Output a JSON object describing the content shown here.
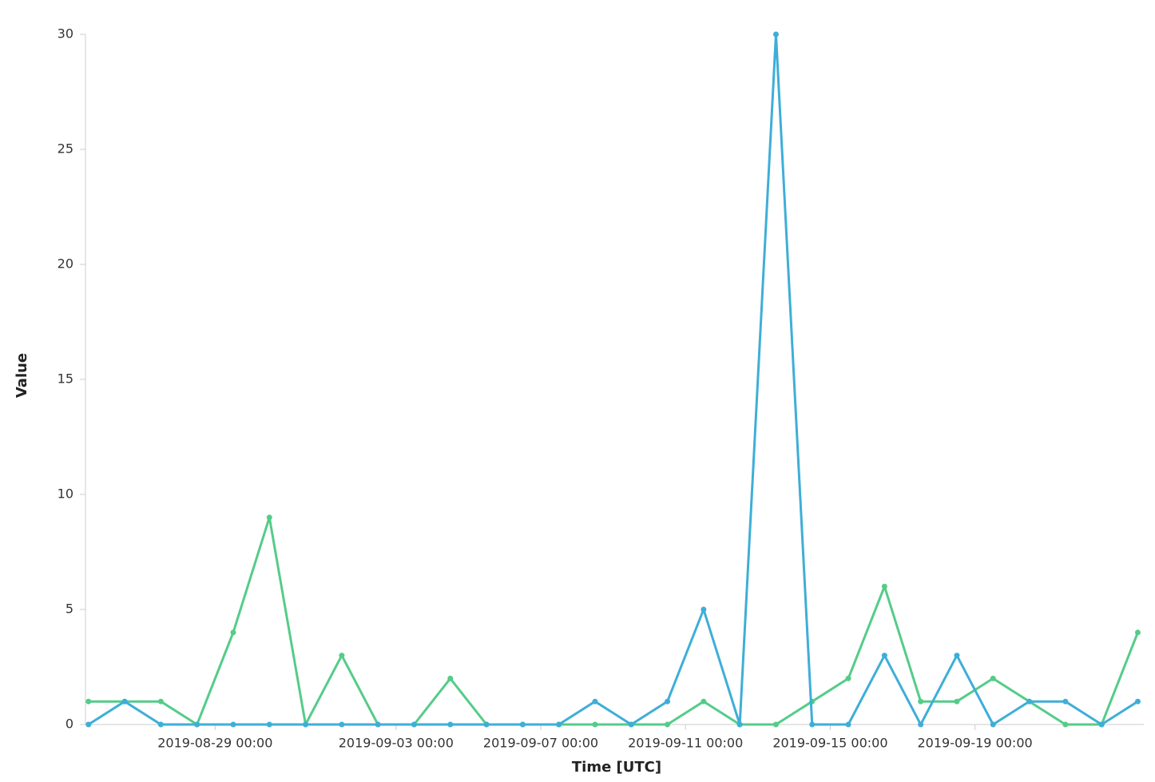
{
  "chart_data": {
    "type": "line",
    "x_label": "Time [UTC]",
    "y_label": "Value",
    "x": [
      "2019-08-25 12:00",
      "2019-08-26 12:00",
      "2019-08-27 12:00",
      "2019-08-28 12:00",
      "2019-08-29 12:00",
      "2019-08-30 12:00",
      "2019-08-31 12:00",
      "2019-09-01 12:00",
      "2019-09-02 12:00",
      "2019-09-03 12:00",
      "2019-09-04 12:00",
      "2019-09-05 12:00",
      "2019-09-06 12:00",
      "2019-09-07 12:00",
      "2019-09-08 12:00",
      "2019-09-09 12:00",
      "2019-09-10 12:00",
      "2019-09-11 12:00",
      "2019-09-12 12:00",
      "2019-09-13 12:00",
      "2019-09-14 12:00",
      "2019-09-15 12:00",
      "2019-09-16 12:00",
      "2019-09-17 12:00",
      "2019-09-18 12:00",
      "2019-09-19 12:00",
      "2019-09-20 12:00",
      "2019-09-21 12:00",
      "2019-09-22 12:00",
      "2019-09-23 12:00"
    ],
    "series": [
      {
        "color": "#54cc88",
        "values": [
          1,
          1,
          1,
          0,
          4,
          9,
          0,
          3,
          0,
          0,
          2,
          0,
          0,
          0,
          0,
          0,
          0,
          1,
          0,
          0,
          1,
          2,
          6,
          1,
          1,
          2,
          1,
          0,
          0,
          4
        ]
      },
      {
        "color": "#3eaed8",
        "values": [
          0,
          1,
          0,
          0,
          0,
          0,
          0,
          0,
          0,
          0,
          0,
          0,
          0,
          0,
          1,
          0,
          1,
          5,
          0,
          30,
          0,
          0,
          3,
          0,
          3,
          0,
          1,
          1,
          0,
          1
        ]
      }
    ],
    "xlim": [
      "2019-08-25 10:00",
      "2019-09-23 16:00"
    ],
    "xticks": [
      "2019-08-29 00:00",
      "2019-09-03 00:00",
      "2019-09-07 00:00",
      "2019-09-11 00:00",
      "2019-09-15 00:00",
      "2019-09-19 00:00"
    ],
    "ylim": [
      0,
      30
    ],
    "yticks": [
      0,
      5,
      10,
      15,
      20,
      25,
      30
    ],
    "grid": false
  }
}
